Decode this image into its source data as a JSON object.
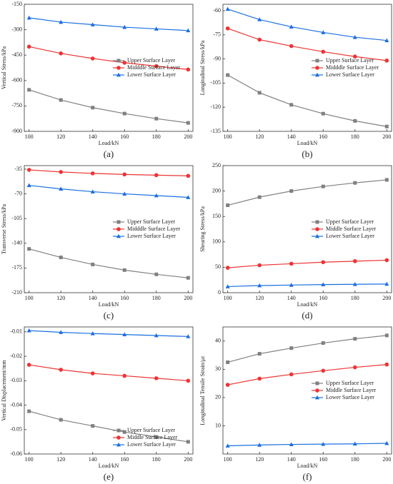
{
  "chart_data": [
    {
      "type": "line",
      "caption": "(a)",
      "x_label": "Load/kN",
      "y_label": "Vertical Stress/kPa",
      "x": [
        100,
        120,
        140,
        160,
        180,
        200
      ],
      "xlim": [
        97,
        203
      ],
      "xticks": [
        100,
        120,
        140,
        160,
        180,
        200
      ],
      "ylim": [
        -900,
        -150
      ],
      "yticks": [
        -150,
        -300,
        -450,
        -600,
        -750,
        -900
      ],
      "legend": "center right",
      "series": [
        {
          "name": "Upper Surface Layer",
          "color": "#808080",
          "marker": "square",
          "values": [
            -655,
            -715,
            -760,
            -795,
            -825,
            -850
          ]
        },
        {
          "name": "Midddle Surface Layer",
          "color": "#ee3333",
          "marker": "circle",
          "values": [
            -400,
            -440,
            -470,
            -495,
            -515,
            -535
          ]
        },
        {
          "name": "Lower Surface Layer",
          "color": "#1a6fe0",
          "marker": "triangle",
          "values": [
            -230,
            -255,
            -270,
            -285,
            -295,
            -305
          ]
        }
      ]
    },
    {
      "type": "line",
      "caption": "(b)",
      "x_label": "Load/kN",
      "y_label": "Longitudinal Stress/kPa",
      "x": [
        100,
        120,
        140,
        160,
        180,
        200
      ],
      "xlim": [
        97,
        203
      ],
      "xticks": [
        100,
        120,
        140,
        160,
        180,
        200
      ],
      "ylim": [
        -135,
        -56
      ],
      "yticks": [
        -60,
        -75,
        -90,
        -105,
        -120,
        -135
      ],
      "legend": "center right",
      "series": [
        {
          "name": "Upper Surface Layer",
          "color": "#808080",
          "marker": "square",
          "values": [
            -100,
            -111,
            -118.5,
            -124,
            -128.5,
            -132
          ]
        },
        {
          "name": "Midddle Surface Layer",
          "color": "#ee3333",
          "marker": "circle",
          "values": [
            -71,
            -78,
            -82,
            -85.5,
            -88.5,
            -91
          ]
        },
        {
          "name": "Lower Surface Layer",
          "color": "#1a6fe0",
          "marker": "triangle",
          "values": [
            -59,
            -65.5,
            -70,
            -73.5,
            -76.5,
            -78.5
          ]
        }
      ]
    },
    {
      "type": "line",
      "caption": "(c)",
      "x_label": "Load/kN",
      "y_label": "Transverse Stress/kPa",
      "x": [
        100,
        120,
        140,
        160,
        180,
        200
      ],
      "xlim": [
        97,
        203
      ],
      "xticks": [
        100,
        120,
        140,
        160,
        180,
        200
      ],
      "ylim": [
        -210,
        -30
      ],
      "yticks": [
        -35,
        -70,
        -105,
        -140,
        -175,
        -210
      ],
      "legend": "center right",
      "series": [
        {
          "name": "Upper Surface Layer",
          "color": "#808080",
          "marker": "square",
          "values": [
            -148,
            -160,
            -170,
            -178,
            -184,
            -189
          ]
        },
        {
          "name": "Midddle Surface Layer",
          "color": "#ee3333",
          "marker": "circle",
          "values": [
            -36,
            -39,
            -41,
            -42.5,
            -43.5,
            -44.5
          ]
        },
        {
          "name": "Lower Surface Layer",
          "color": "#1a6fe0",
          "marker": "triangle",
          "values": [
            -58,
            -63,
            -67,
            -70,
            -72.5,
            -75
          ]
        }
      ]
    },
    {
      "type": "line",
      "caption": "(d)",
      "x_label": "Load/kN",
      "y_label": "Shearing Stress/kPa",
      "x": [
        100,
        120,
        140,
        160,
        180,
        200
      ],
      "xlim": [
        97,
        203
      ],
      "xticks": [
        100,
        120,
        140,
        160,
        180,
        200
      ],
      "ylim": [
        0,
        250
      ],
      "yticks": [
        0,
        50,
        100,
        150,
        200,
        250
      ],
      "legend": "center right",
      "series": [
        {
          "name": "Upper Surface Layer",
          "color": "#808080",
          "marker": "square",
          "values": [
            172,
            188,
            200,
            209,
            216,
            222
          ]
        },
        {
          "name": "Middle Surface Layer",
          "color": "#ee3333",
          "marker": "circle",
          "values": [
            49,
            54,
            57,
            60,
            62,
            64
          ]
        },
        {
          "name": "Lower Surface Layer",
          "color": "#1a6fe0",
          "marker": "triangle",
          "values": [
            12,
            14,
            15,
            16,
            16.5,
            17
          ]
        }
      ]
    },
    {
      "type": "line",
      "caption": "(e)",
      "x_label": "Load/kN",
      "y_label": "Vertical Displacement/mm",
      "x": [
        100,
        120,
        140,
        160,
        180,
        200
      ],
      "xlim": [
        97,
        203
      ],
      "xticks": [
        100,
        120,
        140,
        160,
        180,
        200
      ],
      "ylim": [
        -0.06,
        -0.008
      ],
      "yticks": [
        -0.01,
        -0.02,
        -0.03,
        -0.04,
        -0.05,
        -0.06
      ],
      "legend": "lower right",
      "series": [
        {
          "name": "Upper Surface Layer",
          "color": "#808080",
          "marker": "square",
          "values": [
            -0.0425,
            -0.046,
            -0.0485,
            -0.051,
            -0.053,
            -0.055
          ]
        },
        {
          "name": "Middle Surface Layer",
          "color": "#ee3333",
          "marker": "circle",
          "values": [
            -0.0235,
            -0.0255,
            -0.027,
            -0.028,
            -0.029,
            -0.03
          ]
        },
        {
          "name": "Lower Surface Layer",
          "color": "#1a6fe0",
          "marker": "triangle",
          "values": [
            -0.0095,
            -0.0102,
            -0.0107,
            -0.0111,
            -0.0115,
            -0.0119
          ]
        }
      ]
    },
    {
      "type": "line",
      "caption": "(f)",
      "x_label": "Load/kN",
      "y_label": "Longitudinal Tensile Strain/με",
      "x": [
        100,
        120,
        140,
        160,
        180,
        200
      ],
      "xlim": [
        97,
        203
      ],
      "xticks": [
        100,
        120,
        140,
        160,
        180,
        200
      ],
      "ylim": [
        0,
        45
      ],
      "yticks": [
        10,
        20,
        30,
        40
      ],
      "legend": "center right",
      "series": [
        {
          "name": "Upper Surface Layer",
          "color": "#808080",
          "marker": "square",
          "values": [
            32.5,
            35.5,
            37.5,
            39.3,
            40.8,
            42
          ]
        },
        {
          "name": "Middle Surface Layer",
          "color": "#ee3333",
          "marker": "circle",
          "values": [
            24.5,
            26.7,
            28.2,
            29.5,
            30.7,
            31.7
          ]
        },
        {
          "name": "Lower Surface Layer",
          "color": "#1a6fe0",
          "marker": "triangle",
          "values": [
            2.9,
            3.2,
            3.4,
            3.5,
            3.6,
            3.8
          ]
        }
      ]
    }
  ]
}
